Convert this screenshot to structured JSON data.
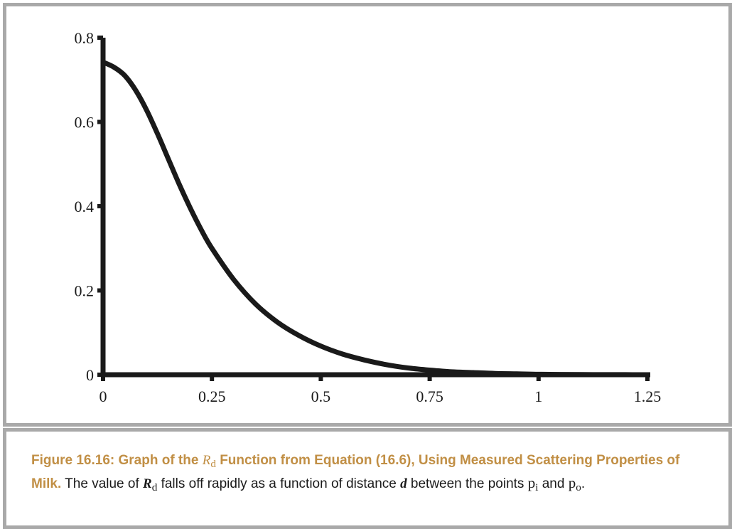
{
  "chart_data": {
    "type": "line",
    "title": "",
    "xlabel": "",
    "ylabel": "",
    "xlim": [
      0,
      1.25
    ],
    "ylim": [
      0,
      0.8
    ],
    "x_ticks": [
      0,
      0.25,
      0.5,
      0.75,
      1,
      1.25
    ],
    "x_tick_labels": [
      "0",
      "0.25",
      "0.5",
      "0.75",
      "1",
      "1.25"
    ],
    "y_ticks": [
      0,
      0.2,
      0.4,
      0.6,
      0.8
    ],
    "y_tick_labels": [
      "0",
      "0.2",
      "0.4",
      "0.6",
      "0.8"
    ],
    "grid": false,
    "legend": "none",
    "line_color": "#1a1a1a",
    "series": [
      {
        "x": [
          0,
          0.025,
          0.05,
          0.075,
          0.1,
          0.125,
          0.15,
          0.175,
          0.2,
          0.225,
          0.25,
          0.3,
          0.35,
          0.4,
          0.45,
          0.5,
          0.55,
          0.6,
          0.65,
          0.7,
          0.75,
          0.8,
          0.85,
          0.9,
          0.95,
          1.0,
          1.05,
          1.1,
          1.15,
          1.2,
          1.25
        ],
        "y": [
          0.742,
          0.73,
          0.71,
          0.675,
          0.628,
          0.572,
          0.512,
          0.452,
          0.396,
          0.345,
          0.3,
          0.226,
          0.168,
          0.125,
          0.093,
          0.068,
          0.049,
          0.035,
          0.024,
          0.016,
          0.011,
          0.007,
          0.005,
          0.003,
          0.002,
          0.001,
          0.0007,
          0.0004,
          0.0002,
          0.0001,
          0.0
        ]
      }
    ]
  },
  "caption": {
    "title_prefix": "Figure 16.16: Graph of the ",
    "title_symbol": "R",
    "title_subscript": "d",
    "title_suffix": " Function from Equation (16.6), Using Measured Scattering Properties of Milk.",
    "body_prefix": " The value of ",
    "body_symbol": "R",
    "body_subscript": "d",
    "body_middle": " falls off rapidly as a function of distance ",
    "body_var": "d",
    "body_after_var": " between the points ",
    "point1": "p",
    "point1_sub": "i",
    "body_and": " and ",
    "point2": "p",
    "point2_sub": "o",
    "body_end": "."
  }
}
